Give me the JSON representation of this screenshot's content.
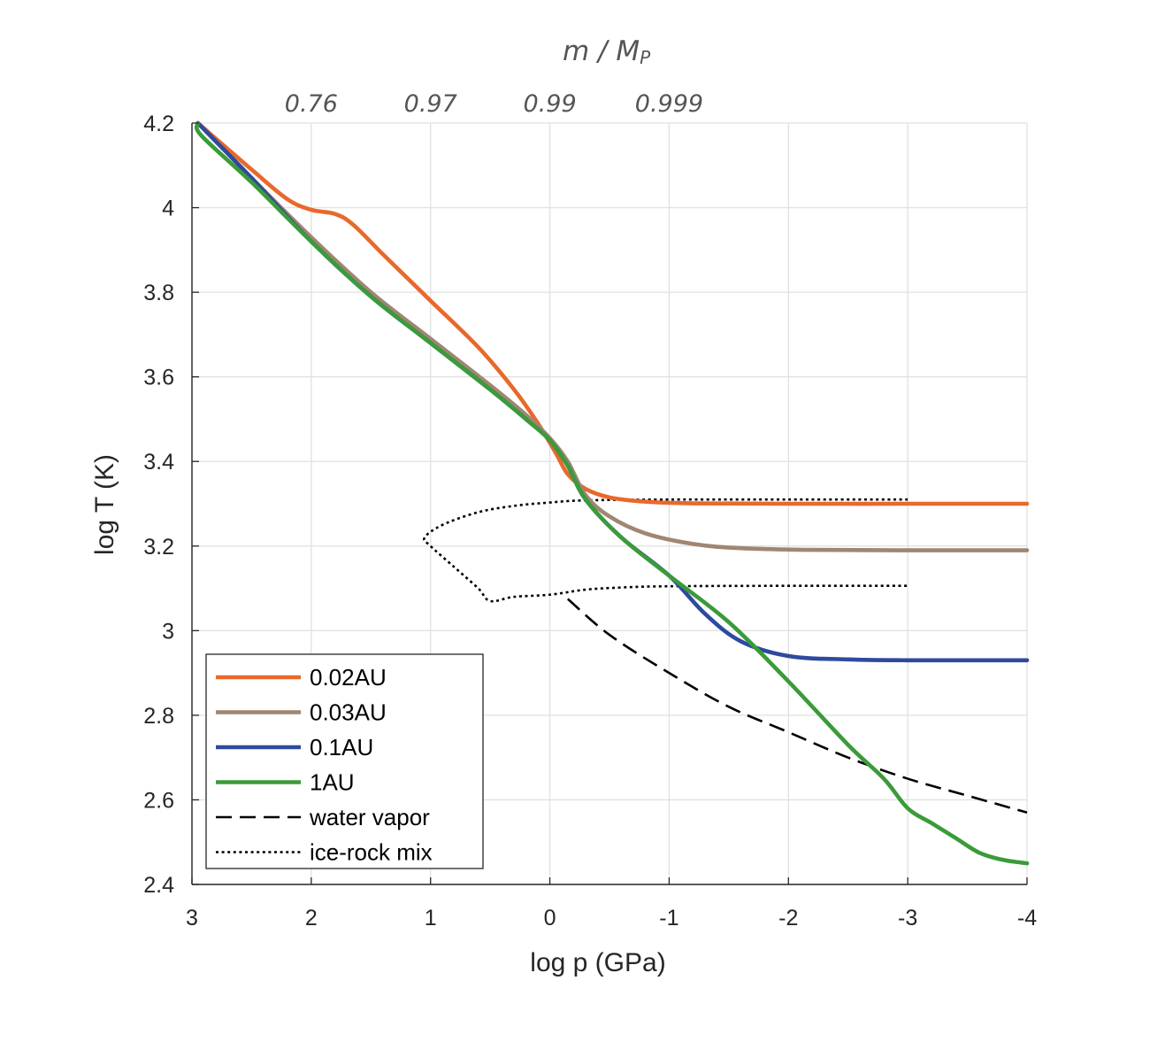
{
  "chart_data": {
    "type": "line",
    "xlabel": "log p (GPa)",
    "ylabel": "log T (K)",
    "xlim": [
      3,
      -4
    ],
    "ylim": [
      2.4,
      4.2
    ],
    "x_ticks": [
      {
        "value": 3,
        "label": "3"
      },
      {
        "value": 2,
        "label": "2"
      },
      {
        "value": 1,
        "label": "1"
      },
      {
        "value": 0,
        "label": "0"
      },
      {
        "value": -1,
        "label": "-1"
      },
      {
        "value": -2,
        "label": "-2"
      },
      {
        "value": -3,
        "label": "-3"
      },
      {
        "value": -4,
        "label": "-4"
      }
    ],
    "y_ticks": [
      {
        "value": 2.4,
        "label": "2.4"
      },
      {
        "value": 2.6,
        "label": "2.6"
      },
      {
        "value": 2.8,
        "label": "2.8"
      },
      {
        "value": 3.0,
        "label": "3"
      },
      {
        "value": 3.2,
        "label": "3.2"
      },
      {
        "value": 3.4,
        "label": "3.4"
      },
      {
        "value": 3.6,
        "label": "3.6"
      },
      {
        "value": 3.8,
        "label": "3.8"
      },
      {
        "value": 4.0,
        "label": "4"
      },
      {
        "value": 4.2,
        "label": "4.2"
      }
    ],
    "grid": true,
    "top_axis": {
      "title_main": "m / M",
      "title_sub": "P",
      "ticks": [
        {
          "x": 2,
          "label": "0.76"
        },
        {
          "x": 1,
          "label": "0.97"
        },
        {
          "x": 0,
          "label": "0.99"
        },
        {
          "x": -1,
          "label": "0.999"
        }
      ]
    },
    "legend_position": "bottom-left",
    "series": [
      {
        "name": "0.02AU",
        "color": "#e8692b",
        "style": "solid",
        "points": [
          [
            2.95,
            4.2
          ],
          [
            2.5,
            4.09
          ],
          [
            2.2,
            4.02
          ],
          [
            2.0,
            3.995
          ],
          [
            1.8,
            3.985
          ],
          [
            1.65,
            3.96
          ],
          [
            1.4,
            3.89
          ],
          [
            1.0,
            3.78
          ],
          [
            0.6,
            3.67
          ],
          [
            0.3,
            3.57
          ],
          [
            0.1,
            3.49
          ],
          [
            -0.05,
            3.42
          ],
          [
            -0.15,
            3.37
          ],
          [
            -0.3,
            3.335
          ],
          [
            -0.5,
            3.315
          ],
          [
            -0.8,
            3.305
          ],
          [
            -1.2,
            3.301
          ],
          [
            -2.0,
            3.3
          ],
          [
            -3.0,
            3.3
          ],
          [
            -4.0,
            3.3
          ]
        ]
      },
      {
        "name": "0.03AU",
        "color": "#a08672",
        "style": "solid",
        "points": [
          [
            2.95,
            4.2
          ],
          [
            2.5,
            4.07
          ],
          [
            2.0,
            3.93
          ],
          [
            1.5,
            3.8
          ],
          [
            1.0,
            3.69
          ],
          [
            0.5,
            3.58
          ],
          [
            0.2,
            3.51
          ],
          [
            0.0,
            3.455
          ],
          [
            -0.15,
            3.4
          ],
          [
            -0.3,
            3.32
          ],
          [
            -0.5,
            3.27
          ],
          [
            -0.8,
            3.23
          ],
          [
            -1.2,
            3.205
          ],
          [
            -1.6,
            3.195
          ],
          [
            -2.2,
            3.191
          ],
          [
            -3.0,
            3.19
          ],
          [
            -4.0,
            3.19
          ]
        ]
      },
      {
        "name": "0.1AU",
        "color": "#2e4a9e",
        "style": "solid",
        "points": [
          [
            2.95,
            4.2
          ],
          [
            2.5,
            4.07
          ],
          [
            2.0,
            3.92
          ],
          [
            1.5,
            3.79
          ],
          [
            1.0,
            3.68
          ],
          [
            0.5,
            3.57
          ],
          [
            0.2,
            3.5
          ],
          [
            0.0,
            3.45
          ],
          [
            -0.15,
            3.39
          ],
          [
            -0.3,
            3.31
          ],
          [
            -0.6,
            3.22
          ],
          [
            -1.0,
            3.13
          ],
          [
            -1.3,
            3.04
          ],
          [
            -1.6,
            2.975
          ],
          [
            -2.0,
            2.94
          ],
          [
            -2.5,
            2.932
          ],
          [
            -3.0,
            2.93
          ],
          [
            -4.0,
            2.93
          ]
        ]
      },
      {
        "name": "1AU",
        "color": "#3a9b3a",
        "style": "solid",
        "points": [
          [
            2.95,
            4.2
          ],
          [
            2.92,
            4.17
          ],
          [
            2.5,
            4.06
          ],
          [
            2.0,
            3.92
          ],
          [
            1.5,
            3.79
          ],
          [
            1.0,
            3.68
          ],
          [
            0.5,
            3.57
          ],
          [
            0.2,
            3.5
          ],
          [
            0.0,
            3.45
          ],
          [
            -0.15,
            3.39
          ],
          [
            -0.3,
            3.31
          ],
          [
            -0.6,
            3.22
          ],
          [
            -1.0,
            3.13
          ],
          [
            -1.5,
            3.02
          ],
          [
            -2.0,
            2.88
          ],
          [
            -2.5,
            2.73
          ],
          [
            -2.8,
            2.65
          ],
          [
            -3.0,
            2.58
          ],
          [
            -3.2,
            2.545
          ],
          [
            -3.4,
            2.51
          ],
          [
            -3.6,
            2.475
          ],
          [
            -3.8,
            2.458
          ],
          [
            -4.0,
            2.45
          ]
        ]
      },
      {
        "name": "water vapor",
        "color": "#000000",
        "style": "dashed",
        "points": [
          [
            -0.15,
            3.075
          ],
          [
            -0.5,
            2.99
          ],
          [
            -1.0,
            2.9
          ],
          [
            -1.5,
            2.82
          ],
          [
            -2.0,
            2.76
          ],
          [
            -2.5,
            2.7
          ],
          [
            -3.0,
            2.65
          ],
          [
            -3.5,
            2.61
          ],
          [
            -4.0,
            2.57
          ]
        ]
      },
      {
        "name": "ice-rock mix",
        "color": "#000000",
        "style": "dotted",
        "points": [
          [
            -3.0,
            3.31
          ],
          [
            -2.0,
            3.31
          ],
          [
            -1.0,
            3.31
          ],
          [
            -0.3,
            3.308
          ],
          [
            0.0,
            3.303
          ],
          [
            0.3,
            3.295
          ],
          [
            0.6,
            3.28
          ],
          [
            0.9,
            3.25
          ],
          [
            1.05,
            3.22
          ],
          [
            1.0,
            3.2
          ],
          [
            0.8,
            3.15
          ],
          [
            0.6,
            3.1
          ],
          [
            0.5,
            3.07
          ],
          [
            0.3,
            3.08
          ],
          [
            0.0,
            3.085
          ],
          [
            -0.3,
            3.097
          ],
          [
            -0.6,
            3.102
          ],
          [
            -1.0,
            3.105
          ],
          [
            -2.0,
            3.106
          ],
          [
            -3.0,
            3.106
          ]
        ]
      }
    ]
  }
}
